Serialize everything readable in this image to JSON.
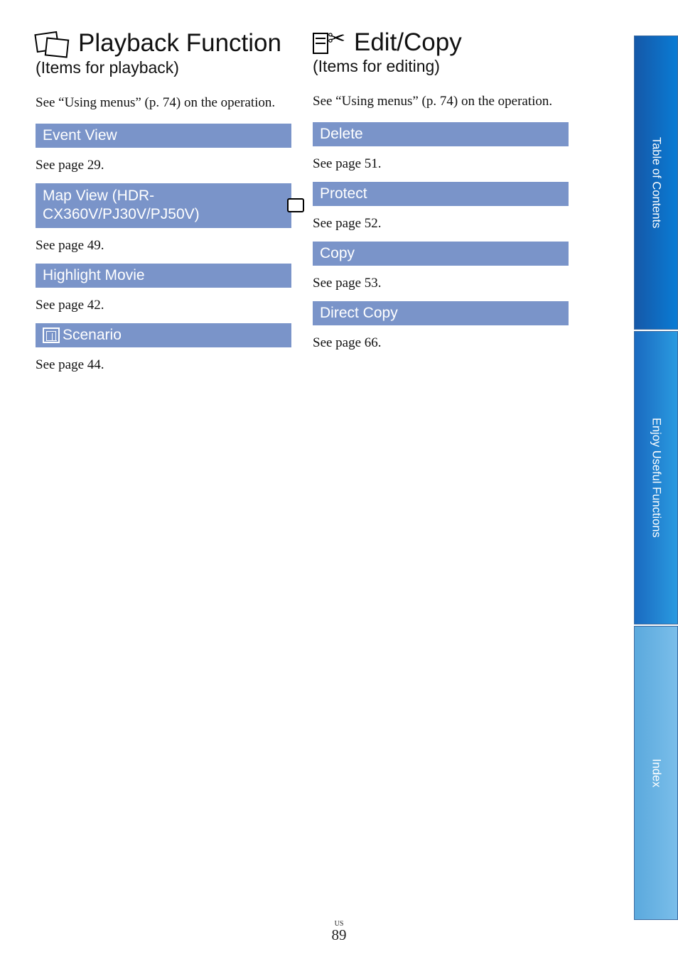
{
  "colors": {
    "item_bar_bg": "#7a94c9",
    "item_bar_text": "#ffffff",
    "body_text": "#111111",
    "sidebar_tab0_start": "#1558a8",
    "sidebar_tab0_end": "#0a7bd4",
    "sidebar_tab1_start": "#1a6ac0",
    "sidebar_tab1_end": "#2a9ae0",
    "sidebar_tab2_start": "#5ba9dd",
    "sidebar_tab2_end": "#7abeea",
    "page_bg": "#ffffff"
  },
  "sidebar": {
    "tabs": [
      "Table of Contents",
      "Enjoy Useful Functions",
      "Index"
    ]
  },
  "left": {
    "title": "Playback Function",
    "subtitle": "(Items for playback)",
    "intro": "See “Using menus” (p. 74) on the operation.",
    "items": [
      {
        "label": "Event View",
        "desc": "See page 29.",
        "has_play_icon": false,
        "tall": false,
        "has_inline_icon": false
      },
      {
        "label": "Map View (HDR-CX360V/PJ30V/PJ50V)",
        "desc": "See page 49.",
        "has_play_icon": true,
        "tall": true,
        "has_inline_icon": false
      },
      {
        "label": "Highlight Movie",
        "desc": "See page 42.",
        "has_play_icon": false,
        "tall": false,
        "has_inline_icon": false
      },
      {
        "label": "Scenario",
        "desc": "See page 44.",
        "has_play_icon": false,
        "tall": false,
        "has_inline_icon": true
      }
    ]
  },
  "right": {
    "title": "Edit/Copy",
    "subtitle": "(Items for editing)",
    "intro": "See “Using menus” (p. 74) on the operation.",
    "items": [
      {
        "label": "Delete",
        "desc": "See page 51."
      },
      {
        "label": "Protect",
        "desc": "See page 52."
      },
      {
        "label": "Copy",
        "desc": "See page 53."
      },
      {
        "label": "Direct Copy",
        "desc": "See page 66."
      }
    ]
  },
  "footer": {
    "region": "US",
    "page": "89"
  }
}
